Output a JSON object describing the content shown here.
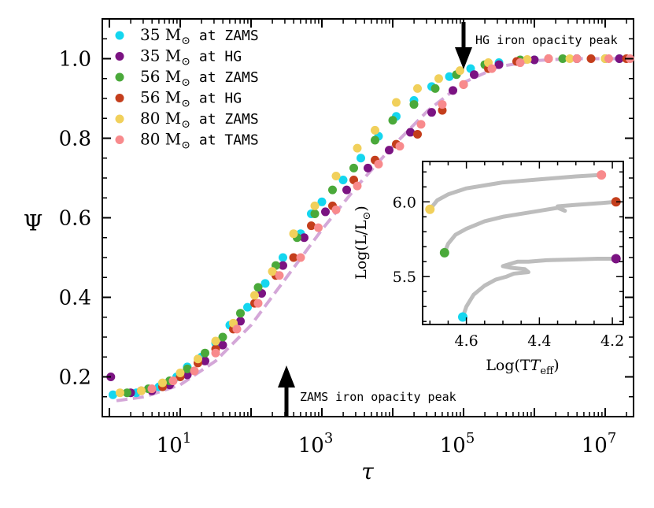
{
  "chart_data": {
    "type": "scatter",
    "xlabel": "τ",
    "ylabel": "Ψ",
    "xscale": "log",
    "xlim_log10": [
      -0.1,
      7.4
    ],
    "ylim": [
      0.1,
      1.1
    ],
    "yticks": [
      "0.2",
      "0.4",
      "0.6",
      "0.8",
      "1.0"
    ],
    "xtick_base": "10",
    "xtick_exponents": [
      "1",
      "3",
      "5",
      "7"
    ],
    "legend_position": "top-left",
    "series": [
      {
        "name": "35 M",
        "suffix": "at ZAMS",
        "color": "#14d6ef",
        "points": [
          [
            0.05,
            0.155
          ],
          [
            0.38,
            0.16
          ],
          [
            0.7,
            0.175
          ],
          [
            0.95,
            0.2
          ],
          [
            1.1,
            0.225
          ],
          [
            1.3,
            0.25
          ],
          [
            1.5,
            0.285
          ],
          [
            1.7,
            0.33
          ],
          [
            1.95,
            0.375
          ],
          [
            2.2,
            0.435
          ],
          [
            2.45,
            0.5
          ],
          [
            2.7,
            0.56
          ],
          [
            2.85,
            0.61
          ],
          [
            3.0,
            0.64
          ],
          [
            3.3,
            0.695
          ],
          [
            3.55,
            0.75
          ],
          [
            3.8,
            0.805
          ],
          [
            4.05,
            0.855
          ],
          [
            4.3,
            0.895
          ],
          [
            4.55,
            0.93
          ],
          [
            4.8,
            0.955
          ],
          [
            5.1,
            0.975
          ],
          [
            5.5,
            0.99
          ],
          [
            6.0,
            0.997
          ],
          [
            6.6,
            1.0
          ],
          [
            7.2,
            1.0
          ]
        ]
      },
      {
        "name": "35 M",
        "suffix": "at HG",
        "color": "#7b1382",
        "points": [
          [
            0.02,
            0.2
          ],
          [
            0.3,
            0.16
          ],
          [
            0.6,
            0.165
          ],
          [
            0.85,
            0.18
          ],
          [
            1.1,
            0.205
          ],
          [
            1.35,
            0.24
          ],
          [
            1.6,
            0.28
          ],
          [
            1.85,
            0.34
          ],
          [
            2.15,
            0.41
          ],
          [
            2.45,
            0.48
          ],
          [
            2.75,
            0.55
          ],
          [
            3.05,
            0.615
          ],
          [
            3.35,
            0.67
          ],
          [
            3.65,
            0.725
          ],
          [
            3.95,
            0.77
          ],
          [
            4.25,
            0.815
          ],
          [
            4.55,
            0.865
          ],
          [
            4.85,
            0.92
          ],
          [
            5.15,
            0.96
          ],
          [
            5.5,
            0.985
          ],
          [
            6.0,
            0.997
          ],
          [
            6.6,
            1.0
          ],
          [
            7.2,
            1.0
          ]
        ]
      },
      {
        "name": "56 M",
        "suffix": "at ZAMS",
        "color": "#4aa93a",
        "points": [
          [
            0.25,
            0.16
          ],
          [
            0.55,
            0.17
          ],
          [
            0.85,
            0.19
          ],
          [
            1.1,
            0.22
          ],
          [
            1.35,
            0.26
          ],
          [
            1.6,
            0.3
          ],
          [
            1.85,
            0.36
          ],
          [
            2.1,
            0.425
          ],
          [
            2.35,
            0.48
          ],
          [
            2.65,
            0.55
          ],
          [
            2.9,
            0.61
          ],
          [
            3.15,
            0.67
          ],
          [
            3.45,
            0.725
          ],
          [
            3.75,
            0.795
          ],
          [
            4.0,
            0.845
          ],
          [
            4.3,
            0.885
          ],
          [
            4.6,
            0.925
          ],
          [
            4.9,
            0.96
          ],
          [
            5.3,
            0.985
          ],
          [
            5.8,
            0.997
          ],
          [
            6.4,
            1.0
          ],
          [
            7.0,
            1.0
          ]
        ]
      },
      {
        "name": "56 M",
        "suffix": "at HG",
        "color": "#c43e1c",
        "points": [
          [
            0.45,
            0.165
          ],
          [
            0.75,
            0.175
          ],
          [
            1.0,
            0.2
          ],
          [
            1.25,
            0.235
          ],
          [
            1.5,
            0.27
          ],
          [
            1.75,
            0.32
          ],
          [
            2.05,
            0.385
          ],
          [
            2.35,
            0.455
          ],
          [
            2.6,
            0.5
          ],
          [
            2.85,
            0.58
          ],
          [
            3.15,
            0.63
          ],
          [
            3.45,
            0.695
          ],
          [
            3.75,
            0.745
          ],
          [
            4.05,
            0.785
          ],
          [
            4.35,
            0.81
          ],
          [
            4.7,
            0.87
          ],
          [
            5.0,
            0.935
          ],
          [
            5.35,
            0.975
          ],
          [
            5.75,
            0.993
          ],
          [
            6.2,
            1.0
          ],
          [
            6.8,
            1.0
          ],
          [
            7.3,
            1.0
          ]
        ]
      },
      {
        "name": "80 M",
        "suffix": "at ZAMS",
        "color": "#f1d05b",
        "points": [
          [
            0.15,
            0.16
          ],
          [
            0.45,
            0.165
          ],
          [
            0.75,
            0.185
          ],
          [
            1.0,
            0.21
          ],
          [
            1.25,
            0.245
          ],
          [
            1.5,
            0.29
          ],
          [
            1.75,
            0.335
          ],
          [
            2.05,
            0.405
          ],
          [
            2.3,
            0.465
          ],
          [
            2.6,
            0.56
          ],
          [
            2.9,
            0.63
          ],
          [
            3.2,
            0.705
          ],
          [
            3.5,
            0.775
          ],
          [
            3.75,
            0.82
          ],
          [
            4.05,
            0.89
          ],
          [
            4.35,
            0.925
          ],
          [
            4.65,
            0.95
          ],
          [
            4.95,
            0.97
          ],
          [
            5.35,
            0.99
          ],
          [
            5.9,
            0.998
          ],
          [
            6.5,
            1.0
          ],
          [
            7.0,
            1.0
          ]
        ]
      },
      {
        "name": "80 M",
        "suffix": "at TAMS",
        "color": "#f88a8c",
        "points": [
          [
            0.6,
            0.17
          ],
          [
            0.9,
            0.19
          ],
          [
            1.2,
            0.215
          ],
          [
            1.5,
            0.26
          ],
          [
            1.8,
            0.32
          ],
          [
            2.1,
            0.385
          ],
          [
            2.4,
            0.455
          ],
          [
            2.7,
            0.5
          ],
          [
            2.95,
            0.575
          ],
          [
            3.2,
            0.62
          ],
          [
            3.5,
            0.68
          ],
          [
            3.8,
            0.735
          ],
          [
            4.1,
            0.78
          ],
          [
            4.4,
            0.835
          ],
          [
            4.7,
            0.885
          ],
          [
            5.0,
            0.935
          ],
          [
            5.4,
            0.975
          ],
          [
            5.8,
            0.99
          ],
          [
            6.2,
            1.0
          ],
          [
            6.6,
            1.0
          ],
          [
            7.05,
            1.0
          ],
          [
            7.35,
            1.0
          ]
        ]
      }
    ],
    "fit_line": {
      "color": "#d4a7d8",
      "points": [
        [
          0.1,
          0.14
        ],
        [
          0.5,
          0.15
        ],
        [
          1.0,
          0.18
        ],
        [
          1.5,
          0.24
        ],
        [
          2.0,
          0.33
        ],
        [
          2.5,
          0.45
        ],
        [
          3.0,
          0.57
        ],
        [
          3.5,
          0.68
        ],
        [
          4.0,
          0.78
        ],
        [
          4.5,
          0.87
        ],
        [
          5.0,
          0.94
        ],
        [
          5.5,
          0.98
        ],
        [
          6.0,
          0.995
        ],
        [
          6.5,
          1.0
        ],
        [
          7.4,
          1.0
        ]
      ]
    },
    "annotations": [
      {
        "text": "HG iron opacity peak",
        "x_log10": 5.0,
        "direction": "down"
      },
      {
        "text": "ZAMS iron opacity peak",
        "x_log10": 2.5,
        "direction": "up"
      }
    ],
    "inset": {
      "type": "line",
      "xlabel": "Log(T",
      "xlabel_sub": "eff",
      "ylabel": "Log(L/L",
      "xlim": [
        4.72,
        4.17
      ],
      "ylim": [
        5.18,
        6.27
      ],
      "xticks": [
        "4.6",
        "4.4",
        "4.2"
      ],
      "yticks": [
        "5.5",
        "6.0"
      ],
      "track_color": "#bdbdbd",
      "tracks": [
        {
          "label": "35 M",
          "points": [
            [
              4.61,
              5.23
            ],
            [
              4.6,
              5.3
            ],
            [
              4.58,
              5.38
            ],
            [
              4.55,
              5.44
            ],
            [
              4.52,
              5.48
            ],
            [
              4.49,
              5.5
            ],
            [
              4.47,
              5.52
            ],
            [
              4.43,
              5.53
            ],
            [
              4.44,
              5.55
            ],
            [
              4.48,
              5.56
            ],
            [
              4.5,
              5.57
            ],
            [
              4.46,
              5.6
            ],
            [
              4.43,
              5.6
            ],
            [
              4.38,
              5.61
            ],
            [
              4.3,
              5.615
            ],
            [
              4.24,
              5.62
            ],
            [
              4.19,
              5.62
            ]
          ]
        },
        {
          "label": "56 M",
          "points": [
            [
              4.66,
              5.66
            ],
            [
              4.65,
              5.72
            ],
            [
              4.63,
              5.78
            ],
            [
              4.6,
              5.82
            ],
            [
              4.55,
              5.87
            ],
            [
              4.5,
              5.9
            ],
            [
              4.45,
              5.92
            ],
            [
              4.4,
              5.94
            ],
            [
              4.35,
              5.96
            ],
            [
              4.33,
              5.94
            ],
            [
              4.35,
              5.97
            ],
            [
              4.3,
              5.98
            ],
            [
              4.24,
              5.99
            ],
            [
              4.19,
              6.0
            ]
          ]
        },
        {
          "label": "80 M",
          "points": [
            [
              4.7,
              5.95
            ],
            [
              4.68,
              6.01
            ],
            [
              4.65,
              6.05
            ],
            [
              4.6,
              6.09
            ],
            [
              4.55,
              6.11
            ],
            [
              4.5,
              6.13
            ],
            [
              4.45,
              6.14
            ],
            [
              4.4,
              6.15
            ],
            [
              4.35,
              6.16
            ],
            [
              4.3,
              6.17
            ],
            [
              4.23,
              6.18
            ]
          ]
        }
      ],
      "markers": [
        {
          "x": 4.61,
          "y": 5.23,
          "color": "#14d6ef"
        },
        {
          "x": 4.19,
          "y": 5.62,
          "color": "#7b1382"
        },
        {
          "x": 4.66,
          "y": 5.66,
          "color": "#4aa93a"
        },
        {
          "x": 4.19,
          "y": 6.0,
          "color": "#c43e1c"
        },
        {
          "x": 4.7,
          "y": 5.95,
          "color": "#f1d05b"
        },
        {
          "x": 4.23,
          "y": 6.18,
          "color": "#f88a8c"
        }
      ]
    }
  }
}
